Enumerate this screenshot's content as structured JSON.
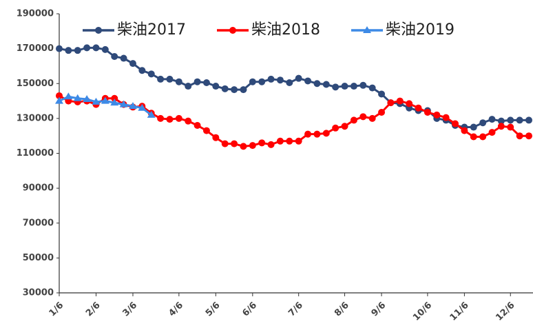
{
  "chart_data": {
    "type": "line",
    "categories": [
      "1/6",
      null,
      null,
      null,
      "2/6",
      null,
      null,
      null,
      "3/6",
      null,
      null,
      null,
      null,
      "4/6",
      null,
      null,
      null,
      "5/6",
      null,
      null,
      null,
      "6/6",
      null,
      null,
      null,
      null,
      "7/6",
      null,
      null,
      null,
      null,
      "8/6",
      null,
      null,
      null,
      "9/6",
      null,
      null,
      null,
      null,
      "10/6",
      null,
      null,
      null,
      "11/6",
      null,
      null,
      null,
      null,
      "12/6",
      null,
      null
    ],
    "series": [
      {
        "name": "柴油2017",
        "color": "#2f4a7a",
        "marker": "circle",
        "values": [
          170000,
          169000,
          169000,
          170500,
          170500,
          169500,
          165500,
          164500,
          161500,
          157500,
          155500,
          152500,
          152500,
          151000,
          148500,
          151000,
          150500,
          148500,
          147000,
          146500,
          146500,
          151000,
          151000,
          152500,
          152000,
          150500,
          153000,
          151500,
          150000,
          149500,
          148000,
          148500,
          148500,
          149000,
          147500,
          144000,
          139000,
          138500,
          136000,
          134500,
          134500,
          130000,
          129000,
          126000,
          125000,
          125000,
          127500,
          129500,
          128500,
          129000,
          129000,
          129000
        ]
      },
      {
        "name": "柴油2018",
        "color": "#ff0000",
        "marker": "circle",
        "values": [
          143000,
          140000,
          139500,
          140000,
          138000,
          141500,
          141500,
          138000,
          136500,
          137000,
          133000,
          130000,
          129500,
          130000,
          128500,
          126000,
          123000,
          119000,
          115500,
          115500,
          114000,
          114500,
          116000,
          115000,
          117000,
          117000,
          117000,
          121000,
          121000,
          121500,
          124500,
          125500,
          129000,
          131000,
          130000,
          133500,
          139000,
          140000,
          138500,
          136000,
          133500,
          132000,
          130500,
          127000,
          123000,
          119500,
          119500,
          122000,
          125500,
          125000,
          120000,
          120000
        ]
      },
      {
        "name": "柴油2019",
        "color": "#3d8ae6",
        "marker": "triangle",
        "values": [
          140000,
          142500,
          141500,
          141000,
          139500,
          140000,
          139000,
          138000,
          137000,
          136000,
          132000,
          null,
          null,
          null,
          null,
          null,
          null,
          null,
          null,
          null,
          null,
          null,
          null,
          null,
          null,
          null,
          null,
          null,
          null,
          null,
          null,
          null,
          null,
          null,
          null,
          null,
          null,
          null,
          null,
          null,
          null,
          null,
          null,
          null,
          null,
          null,
          null,
          null,
          null,
          null,
          null,
          null
        ]
      }
    ],
    "ylim": [
      30000,
      190000
    ],
    "yticks": [
      30000,
      50000,
      70000,
      90000,
      110000,
      130000,
      150000,
      170000,
      190000
    ],
    "grid": false,
    "legend": "top"
  }
}
